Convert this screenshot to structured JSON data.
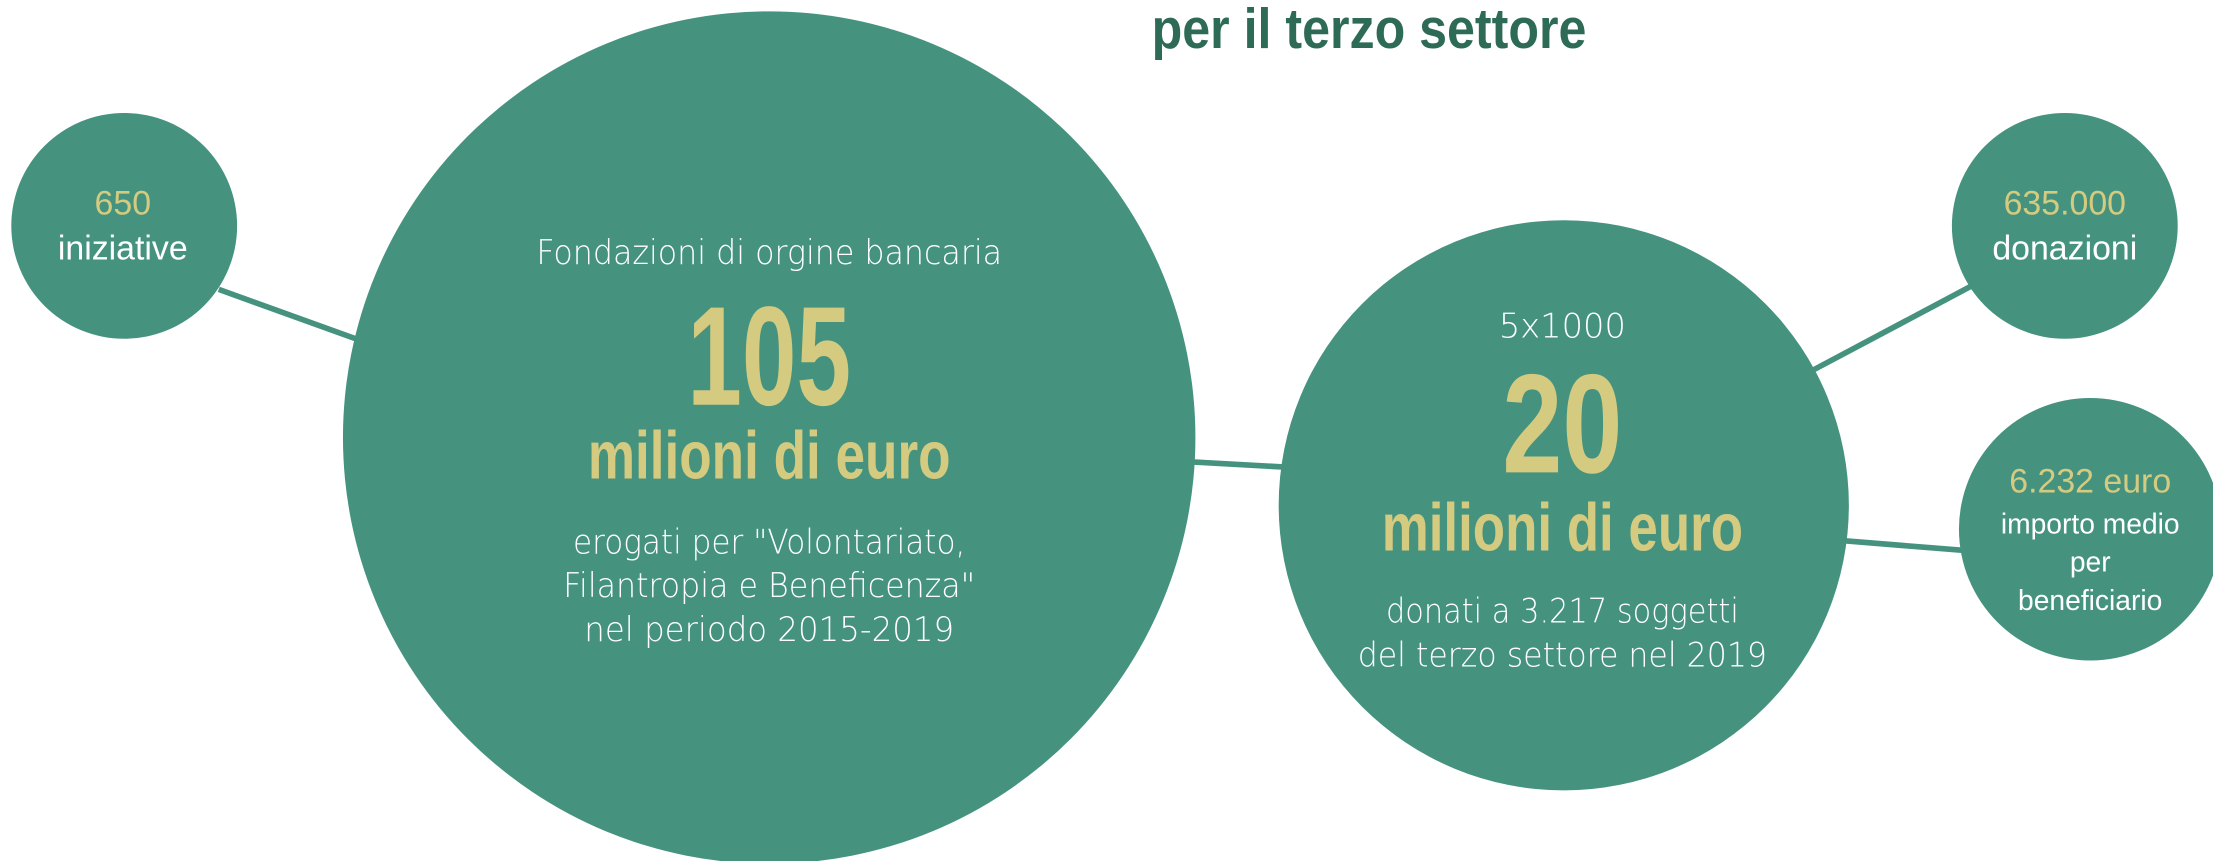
{
  "title": "per il terzo settore",
  "nodes": [
    {
      "value": 650,
      "label": "iniziative"
    },
    {
      "heading": "Fondazioni di orgine bancaria",
      "value": 105,
      "unit": "milioni di euro",
      "description": [
        "erogati per \"Volontariato,",
        "Filantropia e Beneficenza\"",
        "nel periodo 2015-2019"
      ]
    },
    {
      "heading": "5x1000",
      "value": 20,
      "unit": "milioni di euro",
      "description": [
        "donati a 3.217 soggetti",
        "del terzo settore nel 2019"
      ]
    },
    {
      "value": "635.000",
      "label": "donazioni"
    },
    {
      "value": "6.232 euro",
      "label": [
        "importo medio",
        "per",
        "beneficiario"
      ]
    }
  ]
}
